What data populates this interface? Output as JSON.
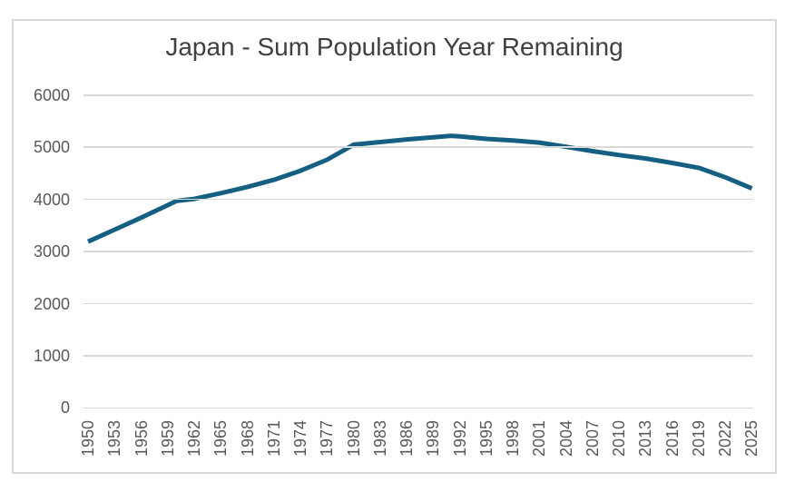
{
  "chart_data": {
    "type": "line",
    "title": "Japan - Sum Population Year Remaining",
    "xlabel": "",
    "ylabel": "",
    "x_range": [
      1950,
      2025
    ],
    "y_range": [
      0,
      6000
    ],
    "y_ticks": [
      0,
      1000,
      2000,
      3000,
      4000,
      5000,
      6000
    ],
    "x_ticks": [
      1950,
      1953,
      1956,
      1959,
      1962,
      1965,
      1968,
      1971,
      1974,
      1977,
      1980,
      1983,
      1986,
      1989,
      1992,
      1995,
      1998,
      2001,
      2004,
      2007,
      2010,
      2013,
      2016,
      2019,
      2022,
      2025
    ],
    "grid": "horizontal",
    "legend": "none",
    "series": [
      {
        "name": "Sum Population Year Remaining",
        "color": "#156082",
        "points": [
          {
            "year": 1950,
            "value": 3190
          },
          {
            "year": 1953,
            "value": 3420
          },
          {
            "year": 1956,
            "value": 3650
          },
          {
            "year": 1959,
            "value": 3890
          },
          {
            "year": 1960,
            "value": 3970
          },
          {
            "year": 1962,
            "value": 4010
          },
          {
            "year": 1965,
            "value": 4120
          },
          {
            "year": 1968,
            "value": 4240
          },
          {
            "year": 1971,
            "value": 4375
          },
          {
            "year": 1974,
            "value": 4550
          },
          {
            "year": 1977,
            "value": 4760
          },
          {
            "year": 1980,
            "value": 5050
          },
          {
            "year": 1983,
            "value": 5100
          },
          {
            "year": 1986,
            "value": 5150
          },
          {
            "year": 1989,
            "value": 5190
          },
          {
            "year": 1991,
            "value": 5220
          },
          {
            "year": 1992,
            "value": 5210
          },
          {
            "year": 1995,
            "value": 5160
          },
          {
            "year": 1998,
            "value": 5130
          },
          {
            "year": 2001,
            "value": 5090
          },
          {
            "year": 2004,
            "value": 5010
          },
          {
            "year": 2007,
            "value": 4925
          },
          {
            "year": 2010,
            "value": 4850
          },
          {
            "year": 2013,
            "value": 4785
          },
          {
            "year": 2016,
            "value": 4700
          },
          {
            "year": 2019,
            "value": 4605
          },
          {
            "year": 2022,
            "value": 4425
          },
          {
            "year": 2025,
            "value": 4210
          }
        ]
      }
    ],
    "colors": {
      "line": "#156082",
      "gridline": "#D9D9D9",
      "frame_border": "#D9D9D9",
      "axis_text": "#595959",
      "title_text": "#404040",
      "background": "#ffffff"
    }
  }
}
